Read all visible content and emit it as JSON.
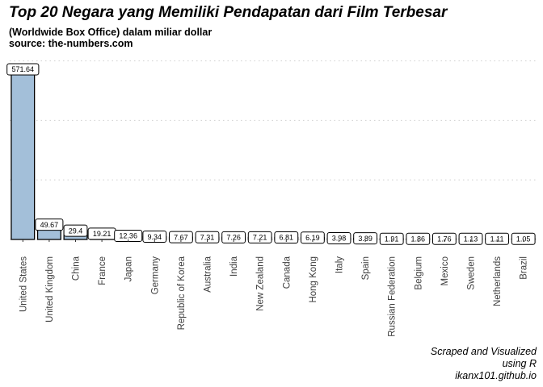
{
  "chart_data": {
    "type": "bar",
    "title": "Top 20 Negara yang Memiliki Pendapatan dari Film Terbesar",
    "subtitle": [
      "(Worldwide Box Office) dalam miliar dollar",
      "source: the-numbers.com"
    ],
    "caption": [
      "Scraped and Visualized",
      "using R",
      "ikanx101.github.io"
    ],
    "categories": [
      "United States",
      "United Kingdom",
      "China",
      "France",
      "Japan",
      "Germany",
      "Republic of Korea",
      "Australia",
      "India",
      "New Zealand",
      "Canada",
      "Hong Kong",
      "Italy",
      "Spain",
      "Russian Federation",
      "Belgium",
      "Mexico",
      "Sweden",
      "Netherlands",
      "Brazil"
    ],
    "values": [
      571.64,
      49.67,
      29.4,
      19.21,
      12.36,
      9.34,
      7.67,
      7.31,
      7.26,
      7.21,
      6.81,
      6.19,
      3.98,
      3.89,
      1.91,
      1.86,
      1.76,
      1.13,
      1.11,
      1.05
    ],
    "data_labels": [
      "571.64",
      "49.67",
      "29.4",
      "19.21",
      "12.36",
      "9.34",
      "7.67",
      "7.31",
      "7.26",
      "7.21",
      "6.81",
      "6.19",
      "3.98",
      "3.89",
      "1.91",
      "1.86",
      "1.76",
      "1.13",
      "1.11",
      "1.05"
    ],
    "xlabel": "",
    "ylabel": "",
    "ylim": [
      0,
      600
    ],
    "y_axis_labels_shown": false,
    "grid": "horizontal dotted",
    "colors": {
      "bar_fill": "#a3bfd9",
      "bar_outline": "#000000",
      "grid": "#cfcfcf"
    }
  }
}
